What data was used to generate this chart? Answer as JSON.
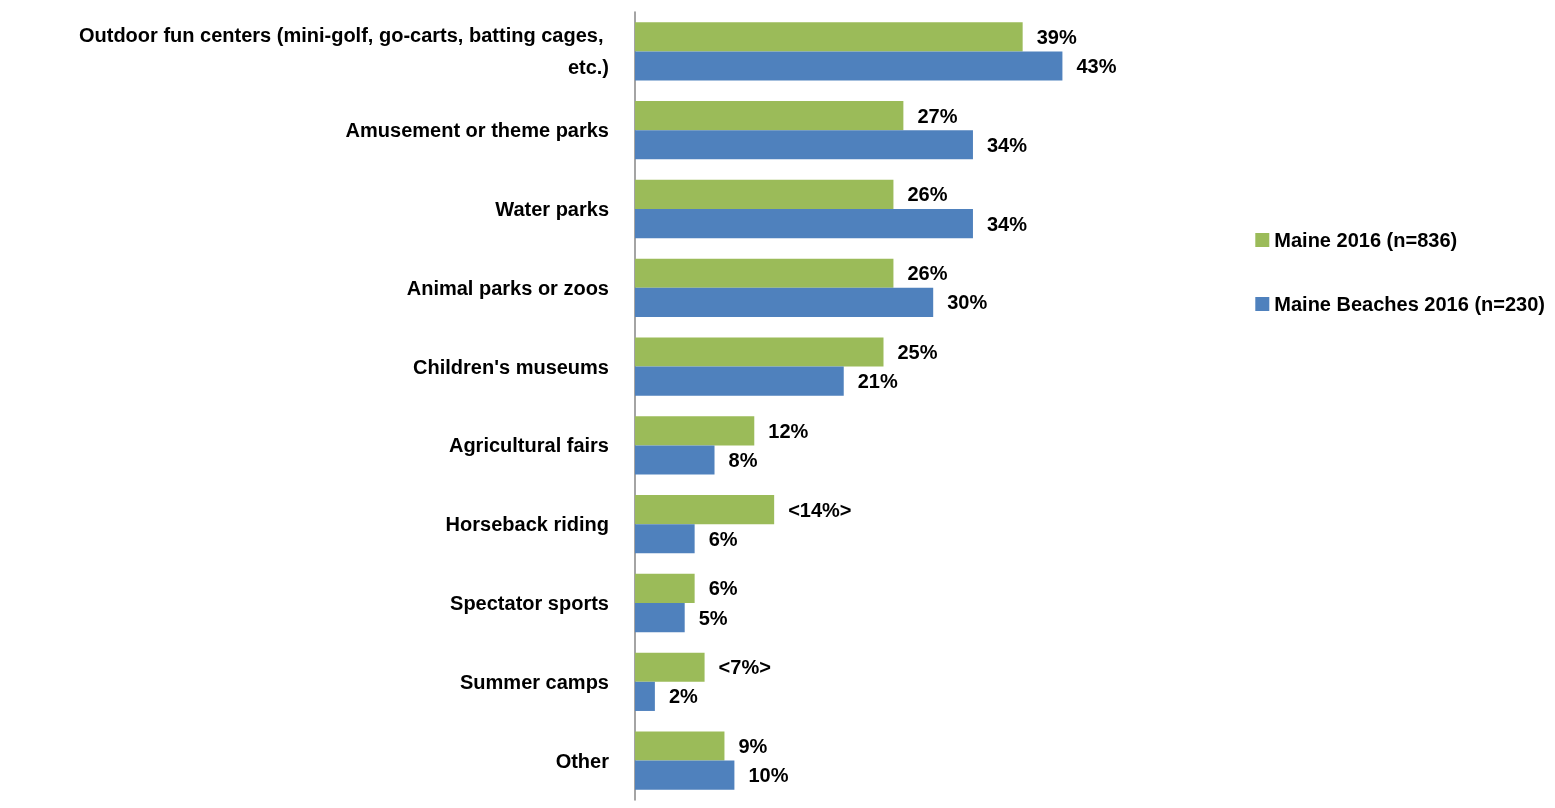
{
  "chart_data": {
    "type": "bar",
    "orientation": "horizontal",
    "categories": [
      "Outdoor fun centers (mini-golf, go-carts, batting cages, etc.)",
      "Amusement or theme parks",
      "Water parks",
      "Animal parks or zoos",
      "Children's museums",
      "Agricultural fairs",
      "Horseback riding",
      "Spectator sports",
      "Summer camps",
      "Other"
    ],
    "series": [
      {
        "name": "Maine 2016 (n=836)",
        "color": "#9bbb59",
        "values": [
          39,
          27,
          26,
          26,
          25,
          12,
          14,
          6,
          7,
          9
        ],
        "value_labels": [
          "39%",
          "27%",
          "26%",
          "26%",
          "25%",
          "12%",
          "<14%>",
          "6%",
          "<7%>",
          "9%"
        ]
      },
      {
        "name": "Maine Beaches 2016 (n=230)",
        "color": "#4f81bd",
        "values": [
          43,
          34,
          34,
          30,
          21,
          8,
          6,
          5,
          2,
          10
        ],
        "value_labels": [
          "43%",
          "34%",
          "34%",
          "30%",
          "21%",
          "8%",
          "6%",
          "5%",
          "2%",
          "10%"
        ]
      }
    ],
    "tick_labels": "y",
    "grid": false,
    "legend": "right"
  }
}
